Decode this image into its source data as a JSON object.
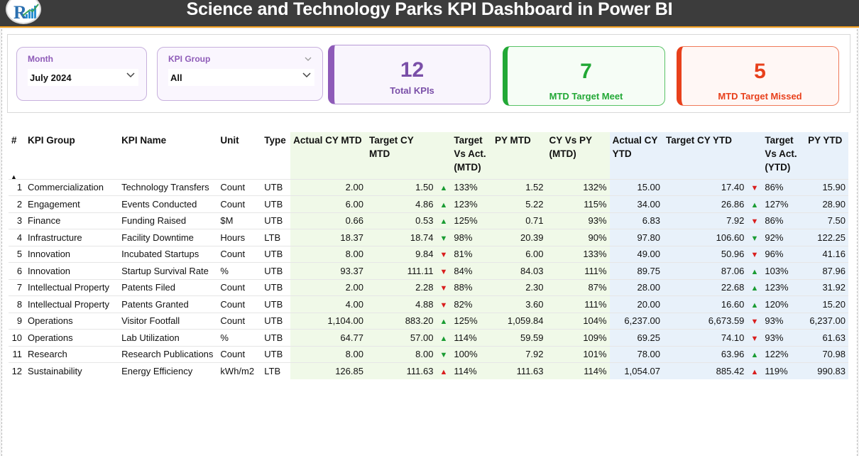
{
  "header": {
    "title": "Science and Technology Parks KPI Dashboard in Power BI"
  },
  "filters": {
    "month": {
      "label": "Month",
      "value": "July 2024"
    },
    "kpi_group": {
      "label": "KPI Group",
      "value": "All"
    }
  },
  "cards": {
    "total": {
      "value": "12",
      "caption": "Total KPIs",
      "color": "#7a4fa8"
    },
    "met": {
      "value": "7",
      "caption": "MTD Target Meet",
      "color": "#22a836"
    },
    "missed": {
      "value": "5",
      "caption": "MTD Target Missed",
      "color": "#e8401c"
    }
  },
  "table": {
    "headers": {
      "idx": "#",
      "group": "KPI Group",
      "name": "KPI Name",
      "unit": "Unit",
      "type": "Type",
      "act_mtd": "Actual CY MTD",
      "tgt_mtd": "Target CY MTD",
      "tva_mtd": "Target Vs Act. (MTD)",
      "py_mtd": "PY MTD",
      "cyvspy": "CY Vs PY (MTD)",
      "act_ytd": "Actual CY YTD",
      "tgt_ytd": "Target CY YTD",
      "tva_ytd": "Target Vs Act. (YTD)",
      "py_ytd": "PY YTD"
    },
    "rows": [
      {
        "idx": "1",
        "group": "Commercialization",
        "name": "Technology Transfers",
        "unit": "Count",
        "type": "UTB",
        "act_mtd": "2.00",
        "tgt_mtd": "1.50",
        "a_mtd": "up",
        "tva_mtd": "133%",
        "py_mtd": "1.52",
        "cyvspy": "132%",
        "act_ytd": "15.00",
        "tgt_ytd": "17.40",
        "a_ytd": "down",
        "tva_ytd": "86%",
        "py_ytd": "15.90"
      },
      {
        "idx": "2",
        "group": "Engagement",
        "name": "Events Conducted",
        "unit": "Count",
        "type": "UTB",
        "act_mtd": "6.00",
        "tgt_mtd": "4.86",
        "a_mtd": "up",
        "tva_mtd": "123%",
        "py_mtd": "5.22",
        "cyvspy": "115%",
        "act_ytd": "34.00",
        "tgt_ytd": "26.86",
        "a_ytd": "up",
        "tva_ytd": "127%",
        "py_ytd": "28.90"
      },
      {
        "idx": "3",
        "group": "Finance",
        "name": "Funding Raised",
        "unit": "$M",
        "type": "UTB",
        "act_mtd": "0.66",
        "tgt_mtd": "0.53",
        "a_mtd": "up",
        "tva_mtd": "125%",
        "py_mtd": "0.71",
        "cyvspy": "93%",
        "act_ytd": "6.83",
        "tgt_ytd": "7.92",
        "a_ytd": "down",
        "tva_ytd": "86%",
        "py_ytd": "7.50"
      },
      {
        "idx": "4",
        "group": "Infrastructure",
        "name": "Facility Downtime",
        "unit": "Hours",
        "type": "LTB",
        "act_mtd": "18.37",
        "tgt_mtd": "18.74",
        "a_mtd": "down-g",
        "tva_mtd": "98%",
        "py_mtd": "20.39",
        "cyvspy": "90%",
        "act_ytd": "97.80",
        "tgt_ytd": "106.60",
        "a_ytd": "down-g",
        "tva_ytd": "92%",
        "py_ytd": "122.25"
      },
      {
        "idx": "5",
        "group": "Innovation",
        "name": "Incubated Startups",
        "unit": "Count",
        "type": "UTB",
        "act_mtd": "8.00",
        "tgt_mtd": "9.84",
        "a_mtd": "down",
        "tva_mtd": "81%",
        "py_mtd": "6.00",
        "cyvspy": "133%",
        "act_ytd": "49.00",
        "tgt_ytd": "50.96",
        "a_ytd": "down",
        "tva_ytd": "96%",
        "py_ytd": "41.16"
      },
      {
        "idx": "6",
        "group": "Innovation",
        "name": "Startup Survival Rate",
        "unit": "%",
        "type": "UTB",
        "act_mtd": "93.37",
        "tgt_mtd": "111.11",
        "a_mtd": "down",
        "tva_mtd": "84%",
        "py_mtd": "84.03",
        "cyvspy": "111%",
        "act_ytd": "89.75",
        "tgt_ytd": "87.06",
        "a_ytd": "up",
        "tva_ytd": "103%",
        "py_ytd": "87.96"
      },
      {
        "idx": "7",
        "group": "Intellectual Property",
        "name": "Patents Filed",
        "unit": "Count",
        "type": "UTB",
        "act_mtd": "2.00",
        "tgt_mtd": "2.28",
        "a_mtd": "down",
        "tva_mtd": "88%",
        "py_mtd": "2.30",
        "cyvspy": "87%",
        "act_ytd": "28.00",
        "tgt_ytd": "22.68",
        "a_ytd": "up",
        "tva_ytd": "123%",
        "py_ytd": "31.92"
      },
      {
        "idx": "8",
        "group": "Intellectual Property",
        "name": "Patents Granted",
        "unit": "Count",
        "type": "UTB",
        "act_mtd": "4.00",
        "tgt_mtd": "4.88",
        "a_mtd": "down",
        "tva_mtd": "82%",
        "py_mtd": "3.60",
        "cyvspy": "111%",
        "act_ytd": "20.00",
        "tgt_ytd": "16.60",
        "a_ytd": "up",
        "tva_ytd": "120%",
        "py_ytd": "15.20"
      },
      {
        "idx": "9",
        "group": "Operations",
        "name": "Visitor Footfall",
        "unit": "Count",
        "type": "UTB",
        "act_mtd": "1,104.00",
        "tgt_mtd": "883.20",
        "a_mtd": "up",
        "tva_mtd": "125%",
        "py_mtd": "1,059.84",
        "cyvspy": "104%",
        "act_ytd": "6,237.00",
        "tgt_ytd": "6,673.59",
        "a_ytd": "down",
        "tva_ytd": "93%",
        "py_ytd": "6,237.00"
      },
      {
        "idx": "10",
        "group": "Operations",
        "name": "Lab Utilization",
        "unit": "%",
        "type": "UTB",
        "act_mtd": "64.77",
        "tgt_mtd": "57.00",
        "a_mtd": "up",
        "tva_mtd": "114%",
        "py_mtd": "59.59",
        "cyvspy": "109%",
        "act_ytd": "69.25",
        "tgt_ytd": "74.10",
        "a_ytd": "down",
        "tva_ytd": "93%",
        "py_ytd": "61.63"
      },
      {
        "idx": "11",
        "group": "Research",
        "name": "Research Publications",
        "unit": "Count",
        "type": "UTB",
        "act_mtd": "8.00",
        "tgt_mtd": "8.00",
        "a_mtd": "down-g",
        "tva_mtd": "100%",
        "py_mtd": "7.92",
        "cyvspy": "101%",
        "act_ytd": "78.00",
        "tgt_ytd": "63.96",
        "a_ytd": "up",
        "tva_ytd": "122%",
        "py_ytd": "70.98"
      },
      {
        "idx": "12",
        "group": "Sustainability",
        "name": "Energy Efficiency",
        "unit": "kWh/m2",
        "type": "LTB",
        "act_mtd": "126.85",
        "tgt_mtd": "111.63",
        "a_mtd": "up-r",
        "tva_mtd": "114%",
        "py_mtd": "111.63",
        "cyvspy": "114%",
        "act_ytd": "1,054.07",
        "tgt_ytd": "885.42",
        "a_ytd": "up-r",
        "tva_ytd": "119%",
        "py_ytd": "990.83"
      }
    ]
  },
  "icons": {
    "up": "triangle-up-icon",
    "down": "triangle-down-icon",
    "chevron": "chevron-down-icon"
  }
}
